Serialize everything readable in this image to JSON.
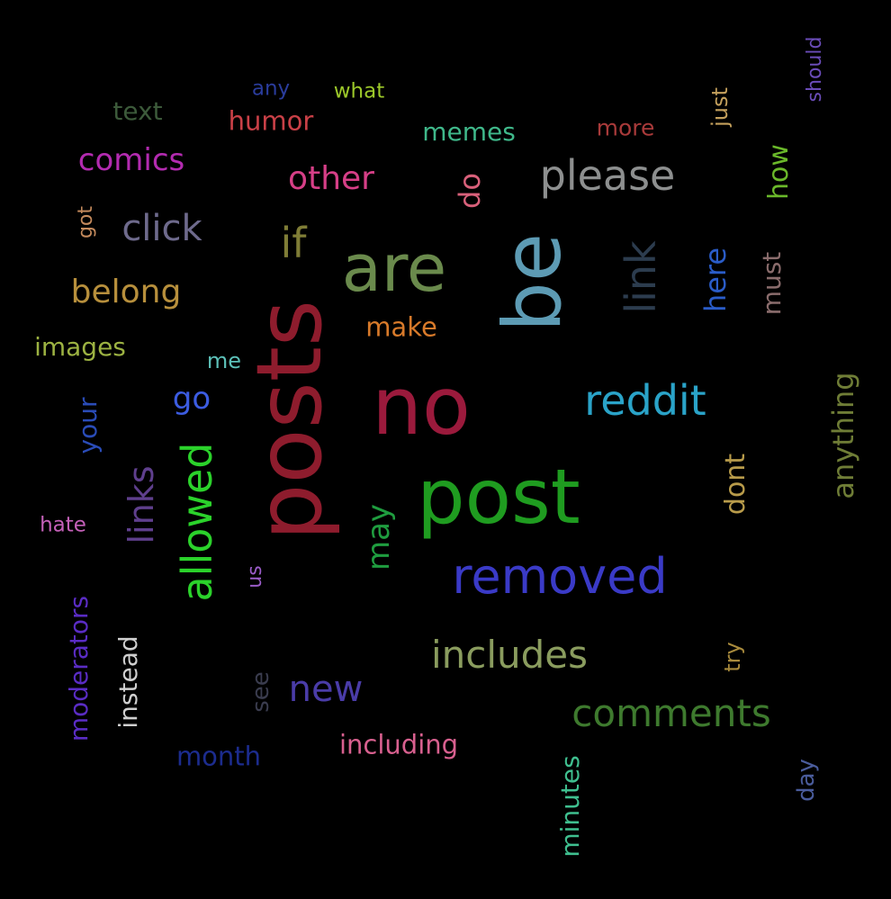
{
  "words": {
    "no": {
      "text": "no",
      "color": "#9b1a3c"
    },
    "posts": {
      "text": "posts",
      "color": "#8e1c2d"
    },
    "post": {
      "text": "post",
      "color": "#1f9c20"
    },
    "be": {
      "text": "be",
      "color": "#5d9bb4"
    },
    "are": {
      "text": "are",
      "color": "#6a8a4c"
    },
    "removed": {
      "text": "removed",
      "color": "#3a3ac7"
    },
    "reddit": {
      "text": "reddit",
      "color": "#2aa3c8"
    },
    "please": {
      "text": "please",
      "color": "#8d8f8f"
    },
    "includes": {
      "text": "includes",
      "color": "#8a9c5e"
    },
    "comments": {
      "text": "comments",
      "color": "#3e7a2e"
    },
    "allowed": {
      "text": "allowed",
      "color": "#2bd22b"
    },
    "link": {
      "text": "link",
      "color": "#2c3c4e"
    },
    "if": {
      "text": "if",
      "color": "#7f7d36"
    },
    "click": {
      "text": "click",
      "color": "#6e6a8c"
    },
    "belong": {
      "text": "belong",
      "color": "#b78f3c"
    },
    "comics": {
      "text": "comics",
      "color": "#b32bb0"
    },
    "other": {
      "text": "other",
      "color": "#d63f87"
    },
    "new": {
      "text": "new",
      "color": "#4a3ca8"
    },
    "links": {
      "text": "links",
      "color": "#5f3f8d"
    },
    "anything": {
      "text": "anything",
      "color": "#6f7d36"
    },
    "may": {
      "text": "may",
      "color": "#1f9d3f"
    },
    "moderators": {
      "text": "moderators",
      "color": "#5a2cc4"
    },
    "including": {
      "text": "including",
      "color": "#d8608f"
    },
    "humor": {
      "text": "humor",
      "color": "#c94047"
    },
    "memes": {
      "text": "memes",
      "color": "#3fb88a"
    },
    "images": {
      "text": "images",
      "color": "#9cb242"
    },
    "instead": {
      "text": "instead",
      "color": "#cfcfcf"
    },
    "minutes": {
      "text": "minutes",
      "color": "#3fbf8f"
    },
    "month": {
      "text": "month",
      "color": "#1c2c8e"
    },
    "make": {
      "text": "make",
      "color": "#d87a2a"
    },
    "here": {
      "text": "here",
      "color": "#2a5cc8"
    },
    "text": {
      "text": "text",
      "color": "#3c5a3a"
    },
    "go": {
      "text": "go",
      "color": "#3c5ce0"
    },
    "dont": {
      "text": "dont",
      "color": "#b89b4a"
    },
    "do": {
      "text": "do",
      "color": "#d8607a"
    },
    "how": {
      "text": "how",
      "color": "#6ab82a"
    },
    "must": {
      "text": "must",
      "color": "#8a6c6c"
    },
    "your": {
      "text": "your",
      "color": "#2a4cb8"
    },
    "more": {
      "text": "more",
      "color": "#a83a3a"
    },
    "just": {
      "text": "just",
      "color": "#c4a05c"
    },
    "should": {
      "text": "should",
      "color": "#6a4cb8"
    },
    "any": {
      "text": "any",
      "color": "#2a3c9c"
    },
    "what": {
      "text": "what",
      "color": "#9cc82a"
    },
    "got": {
      "text": "got",
      "color": "#c48a5c"
    },
    "me": {
      "text": "me",
      "color": "#5cc0b8"
    },
    "hate": {
      "text": "hate",
      "color": "#c460b8"
    },
    "us": {
      "text": "us",
      "color": "#9a5cc8"
    },
    "see": {
      "text": "see",
      "color": "#3a3c4e"
    },
    "try": {
      "text": "try",
      "color": "#a88a3c"
    },
    "day": {
      "text": "day",
      "color": "#4a5c9c"
    }
  }
}
